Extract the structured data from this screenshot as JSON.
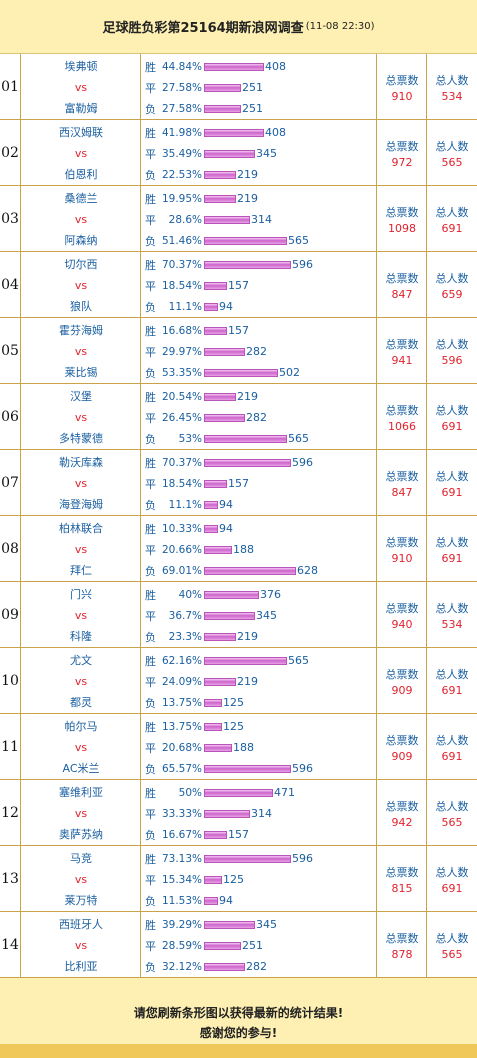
{
  "header": {
    "title": "足球胜负彩第25164期新浪网调查",
    "stamp": "(11-08 22:30)"
  },
  "labels": {
    "win": "胜",
    "draw": "平",
    "loss": "负",
    "vs": "vs",
    "votes_title": "总票数",
    "people_title": "总人数"
  },
  "matches": [
    {
      "no": "01",
      "home": "埃弗顿",
      "away": "富勒姆",
      "win_pct": "44.84%",
      "win_count": 408,
      "draw_pct": "27.58%",
      "draw_count": 251,
      "loss_pct": "27.58%",
      "loss_count": 251,
      "votes": "910",
      "people": "534"
    },
    {
      "no": "02",
      "home": "西汉姆联",
      "away": "伯恩利",
      "win_pct": "41.98%",
      "win_count": 408,
      "draw_pct": "35.49%",
      "draw_count": 345,
      "loss_pct": "22.53%",
      "loss_count": 219,
      "votes": "972",
      "people": "565"
    },
    {
      "no": "03",
      "home": "桑德兰",
      "away": "阿森纳",
      "win_pct": "19.95%",
      "win_count": 219,
      "draw_pct": "28.6%",
      "draw_count": 314,
      "loss_pct": "51.46%",
      "loss_count": 565,
      "votes": "1098",
      "people": "691"
    },
    {
      "no": "04",
      "home": "切尔西",
      "away": "狼队",
      "win_pct": "70.37%",
      "win_count": 596,
      "draw_pct": "18.54%",
      "draw_count": 157,
      "loss_pct": "11.1%",
      "loss_count": 94,
      "votes": "847",
      "people": "659"
    },
    {
      "no": "05",
      "home": "霍芬海姆",
      "away": "莱比锡",
      "win_pct": "16.68%",
      "win_count": 157,
      "draw_pct": "29.97%",
      "draw_count": 282,
      "loss_pct": "53.35%",
      "loss_count": 502,
      "votes": "941",
      "people": "596"
    },
    {
      "no": "06",
      "home": "汉堡",
      "away": "多特蒙德",
      "win_pct": "20.54%",
      "win_count": 219,
      "draw_pct": "26.45%",
      "draw_count": 282,
      "loss_pct": "53%",
      "loss_count": 565,
      "votes": "1066",
      "people": "691"
    },
    {
      "no": "07",
      "home": "勒沃库森",
      "away": "海登海姆",
      "win_pct": "70.37%",
      "win_count": 596,
      "draw_pct": "18.54%",
      "draw_count": 157,
      "loss_pct": "11.1%",
      "loss_count": 94,
      "votes": "847",
      "people": "691"
    },
    {
      "no": "08",
      "home": "柏林联合",
      "away": "拜仁",
      "win_pct": "10.33%",
      "win_count": 94,
      "draw_pct": "20.66%",
      "draw_count": 188,
      "loss_pct": "69.01%",
      "loss_count": 628,
      "votes": "910",
      "people": "691"
    },
    {
      "no": "09",
      "home": "门兴",
      "away": "科隆",
      "win_pct": "40%",
      "win_count": 376,
      "draw_pct": "36.7%",
      "draw_count": 345,
      "loss_pct": "23.3%",
      "loss_count": 219,
      "votes": "940",
      "people": "534"
    },
    {
      "no": "10",
      "home": "尤文",
      "away": "都灵",
      "win_pct": "62.16%",
      "win_count": 565,
      "draw_pct": "24.09%",
      "draw_count": 219,
      "loss_pct": "13.75%",
      "loss_count": 125,
      "votes": "909",
      "people": "691"
    },
    {
      "no": "11",
      "home": "帕尔马",
      "away": "AC米兰",
      "win_pct": "13.75%",
      "win_count": 125,
      "draw_pct": "20.68%",
      "draw_count": 188,
      "loss_pct": "65.57%",
      "loss_count": 596,
      "votes": "909",
      "people": "691"
    },
    {
      "no": "12",
      "home": "塞维利亚",
      "away": "奥萨苏纳",
      "win_pct": "50%",
      "win_count": 471,
      "draw_pct": "33.33%",
      "draw_count": 314,
      "loss_pct": "16.67%",
      "loss_count": 157,
      "votes": "942",
      "people": "565"
    },
    {
      "no": "13",
      "home": "马竞",
      "away": "莱万特",
      "win_pct": "73.13%",
      "win_count": 596,
      "draw_pct": "15.34%",
      "draw_count": 125,
      "loss_pct": "11.53%",
      "loss_count": 94,
      "votes": "815",
      "people": "691"
    },
    {
      "no": "14",
      "home": "西班牙人",
      "away": "比利亚",
      "win_pct": "39.29%",
      "win_count": 345,
      "draw_pct": "28.59%",
      "draw_count": 251,
      "loss_pct": "32.12%",
      "loss_count": 282,
      "votes": "878",
      "people": "565"
    }
  ],
  "footer": {
    "line1": "请您刷新条形图以获得最新的统计结果!",
    "line2": "感谢您的参与!"
  },
  "colors": {
    "bar": "#cc66cc",
    "text_blue": "#1a5fa0",
    "text_red": "#e0222d",
    "background": "#fdf0b2",
    "border": "#c9a24a"
  }
}
